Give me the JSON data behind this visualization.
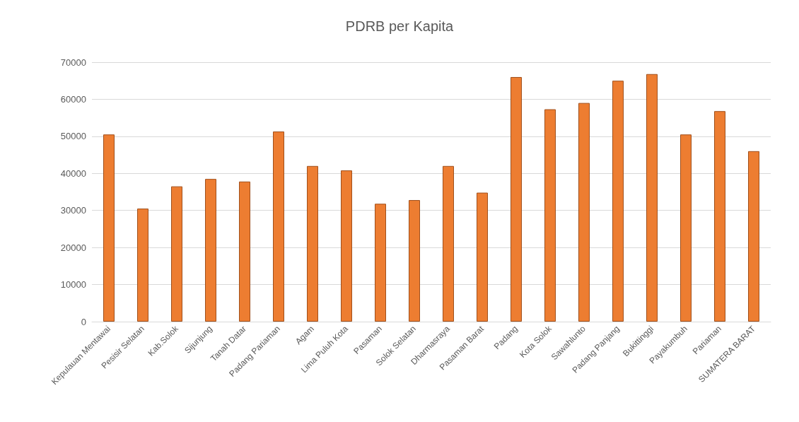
{
  "chart_data": {
    "type": "bar",
    "title": "PDRB per Kapita",
    "categories": [
      "Kepulauan Mentawai",
      "Pesisir Selatan",
      "Kab.Solok",
      "Sijunjung",
      "Tanah Datar",
      "Padang Pariaman",
      "Agam",
      "Lima Puluh Kota",
      "Pasaman",
      "Solok Selatan",
      "Dharmasraya",
      "Pasaman Barat",
      "Padang",
      "Kota Solok",
      "Sawahlunto",
      "Padang Panjang",
      "Bukittinggi",
      "Payakumbuh",
      "Pariaman",
      "SUMATERA BARAT"
    ],
    "values": [
      50500,
      30500,
      36500,
      38500,
      37800,
      51300,
      42000,
      40800,
      31800,
      32800,
      42000,
      34800,
      66000,
      57300,
      59000,
      65000,
      66800,
      50500,
      56800,
      46000
    ],
    "color": "#ed7d31",
    "ylim": [
      0,
      70000
    ],
    "yticks": [
      0,
      10000,
      20000,
      30000,
      40000,
      50000,
      60000,
      70000
    ],
    "grid": "y"
  }
}
